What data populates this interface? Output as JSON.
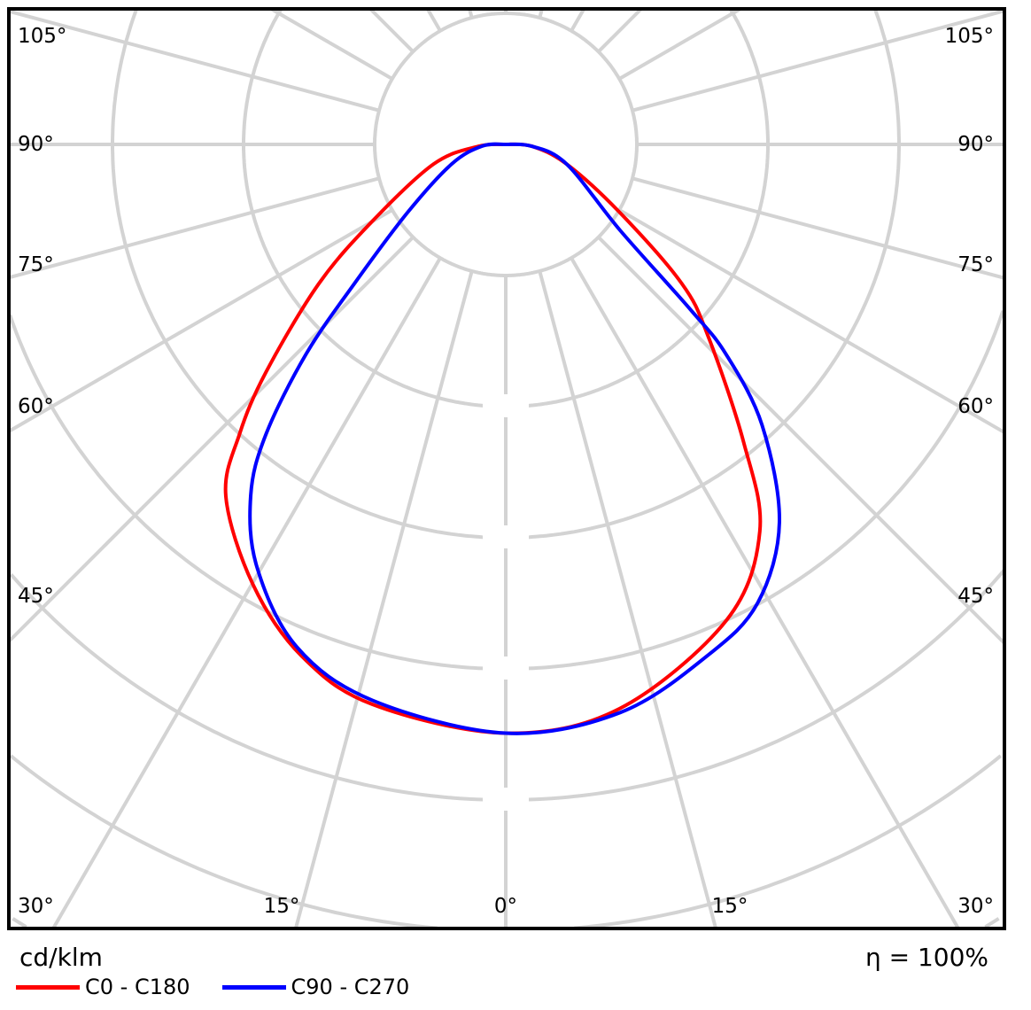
{
  "chart_data": {
    "type": "polar-line",
    "unit_label": "cd/klm",
    "efficiency_label": "η = 100%",
    "angle_labels_left": [
      "105°",
      "90°",
      "75°",
      "60°",
      "45°",
      "30°"
    ],
    "angle_labels_right": [
      "105°",
      "90°",
      "75°",
      "60°",
      "45°",
      "30°"
    ],
    "angle_labels_bottom": [
      "15°",
      "0°",
      "15°"
    ],
    "angular_grid_step_deg": 15,
    "grid": true,
    "legend_placement": "bottom-left",
    "radial_units_note": "",
    "series": [
      {
        "name": "C0 - C180",
        "color": "#ff0000",
        "points": [
          [
            -90,
            0
          ],
          [
            -86,
            0.21
          ],
          [
            -74.8,
            0.57
          ],
          [
            -60,
            1.18
          ],
          [
            -53.3,
            1.78
          ],
          [
            -46.5,
            2.52
          ],
          [
            -42.6,
            3.0
          ],
          [
            -38.5,
            3.43
          ],
          [
            -29.9,
            3.87
          ],
          [
            -21.8,
            4.2
          ],
          [
            -13.4,
            4.39
          ],
          [
            0,
            4.49
          ],
          [
            11.4,
            4.39
          ],
          [
            24.9,
            4.0
          ],
          [
            33.3,
            3.53
          ],
          [
            38.6,
            2.91
          ],
          [
            46.5,
            2.13
          ],
          [
            51.7,
            1.71
          ],
          [
            59.2,
            1.01
          ],
          [
            72,
            0.49
          ],
          [
            86,
            0.2
          ],
          [
            90,
            0
          ]
        ]
      },
      {
        "name": "C90 - C270",
        "color": "#0000ff",
        "points": [
          [
            -90,
            0
          ],
          [
            -86,
            0.18
          ],
          [
            -70,
            0.44
          ],
          [
            -55.3,
            0.91
          ],
          [
            -47.4,
            1.57
          ],
          [
            -43.6,
            2.21
          ],
          [
            -39.6,
            2.87
          ],
          [
            -36,
            3.31
          ],
          [
            -30.5,
            3.74
          ],
          [
            -22.6,
            4.15
          ],
          [
            -13.5,
            4.36
          ],
          [
            0,
            4.49
          ],
          [
            11.4,
            4.42
          ],
          [
            21.6,
            4.19
          ],
          [
            28.8,
            3.99
          ],
          [
            35.9,
            3.56
          ],
          [
            42.4,
            2.9
          ],
          [
            46.4,
            2.32
          ],
          [
            48.2,
            1.89
          ],
          [
            53.1,
            1.09
          ],
          [
            72,
            0.49
          ],
          [
            86,
            0.2
          ],
          [
            90,
            0
          ]
        ]
      }
    ]
  }
}
